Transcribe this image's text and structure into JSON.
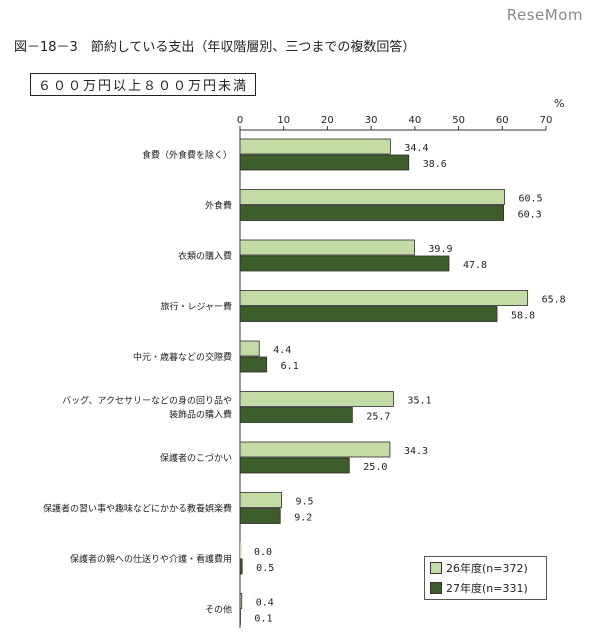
{
  "watermark": "ReseMom",
  "figure_title": "図－18－3　節約している支出（年収階層別、三つまでの複数回答）",
  "income_band": "６００万円以上８００万円未満",
  "colors": {
    "series_2014": "#c3dba4",
    "series_2015": "#3d5e2a",
    "axis": "#333333"
  },
  "chart_data": {
    "type": "bar",
    "orientation": "horizontal",
    "unit": "%",
    "xlim": [
      0,
      70
    ],
    "ticks": [
      0,
      10,
      20,
      30,
      40,
      50,
      60,
      70
    ],
    "grid": false,
    "legend_position": "bottom-right",
    "categories": [
      [
        "食費（外食費を除く）"
      ],
      [
        "外食費"
      ],
      [
        "衣類の購入費"
      ],
      [
        "旅行・レジャー費"
      ],
      [
        "中元・歳暮などの交際費"
      ],
      [
        "バッグ、アクセサリーなどの身の回り品や",
        "装飾品の購入費"
      ],
      [
        "保護者のこづかい"
      ],
      [
        "保護者の習い事や趣味などにかかる教養娯楽費"
      ],
      [
        "保護者の親への仕送りや介護・看護費用"
      ],
      [
        "その他"
      ]
    ],
    "series": [
      {
        "name": "26年度(n=372)",
        "values": [
          34.4,
          60.5,
          39.9,
          65.8,
          4.4,
          35.1,
          34.3,
          9.5,
          0.0,
          0.4
        ],
        "labels": [
          "34.4",
          "60.5",
          "39.9",
          "65.8",
          "4.4",
          "35.1",
          "34.3",
          "9.5",
          "0.0",
          "0.4"
        ]
      },
      {
        "name": "27年度(n=331)",
        "values": [
          38.6,
          60.3,
          47.8,
          58.8,
          6.1,
          25.7,
          25.0,
          9.2,
          0.5,
          0.1
        ],
        "labels": [
          "38.6",
          "60.3",
          "47.8",
          "58.8",
          "6.1",
          "25.7",
          "25.0",
          "9.2",
          "0.5",
          "0.1"
        ]
      }
    ]
  }
}
